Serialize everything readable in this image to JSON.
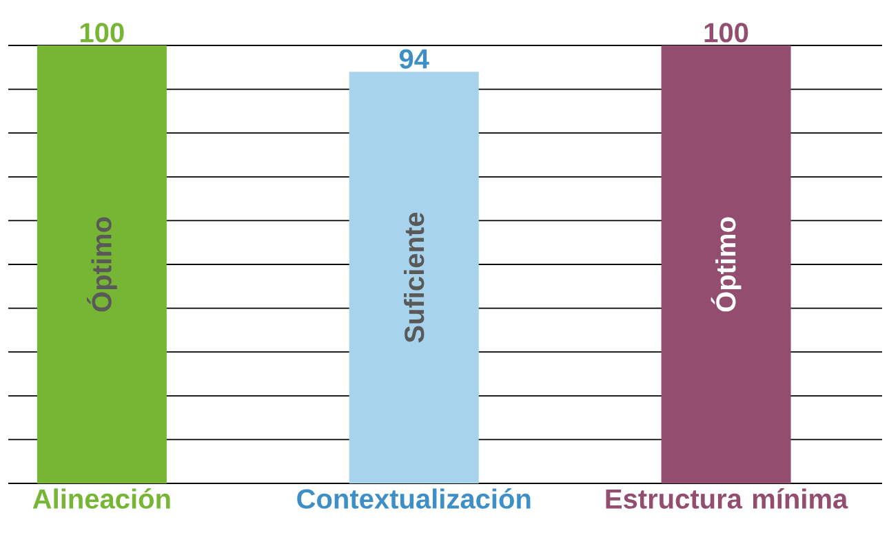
{
  "chart_data": {
    "type": "bar",
    "categories": [
      "Alineación",
      "Contextualización",
      "Estructura mínima"
    ],
    "values": [
      100,
      94,
      100
    ],
    "colors": [
      "#76b634",
      "#a8d3ec",
      "#924d6f"
    ],
    "ylim": [
      0,
      100
    ],
    "yticks": [
      {
        "value": 0,
        "label": null
      },
      {
        "value": 10,
        "label": null
      },
      {
        "value": 20,
        "label": null
      },
      {
        "value": 30,
        "label": null
      },
      {
        "value": 40,
        "label": null
      },
      {
        "value": 50,
        "label": null
      },
      {
        "value": 60,
        "label": null
      },
      {
        "value": 70,
        "label": null
      },
      {
        "value": 80,
        "label": null
      },
      {
        "value": 90,
        "label": null
      },
      {
        "value": 100,
        "label": null
      }
    ],
    "grid": "y",
    "data_labels": true,
    "annotations": [
      "Óptimo",
      "Suficiente",
      "Óptimo"
    ]
  }
}
